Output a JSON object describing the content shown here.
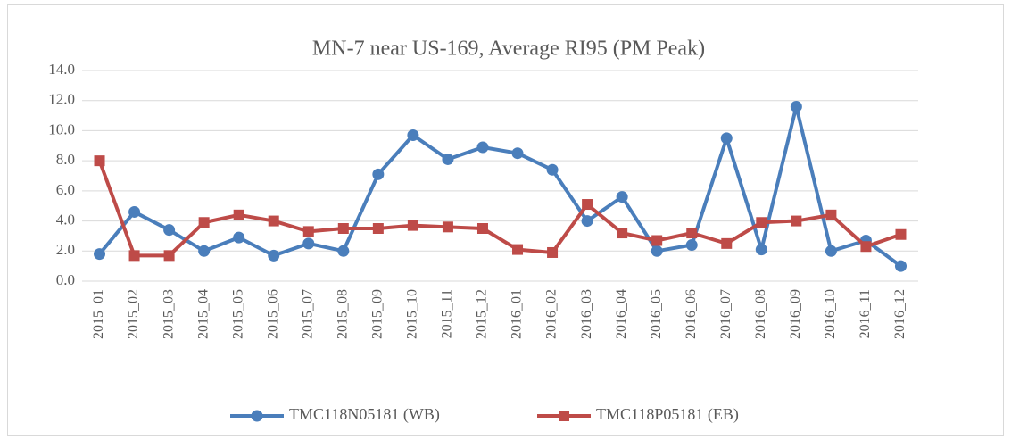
{
  "chart_data": {
    "type": "line",
    "title": "MN-7 near US-169, Average RI95 (PM Peak)",
    "categories": [
      "2015_01",
      "2015_02",
      "2015_03",
      "2015_04",
      "2015_05",
      "2015_06",
      "2015_07",
      "2015_08",
      "2015_09",
      "2015_10",
      "2015_11",
      "2015_12",
      "2016_01",
      "2016_02",
      "2016_03",
      "2016_04",
      "2016_05",
      "2016_06",
      "2016_07",
      "2016_08",
      "2016_09",
      "2016_10",
      "2016_11",
      "2016_12"
    ],
    "series": [
      {
        "name": "TMC118N05181 (WB)",
        "color": "#4a7ebb",
        "marker": "circle",
        "values": [
          1.8,
          4.6,
          3.4,
          2.0,
          2.9,
          1.7,
          2.5,
          2.0,
          7.1,
          9.7,
          8.1,
          8.9,
          8.5,
          7.4,
          4.0,
          5.6,
          2.0,
          2.4,
          9.5,
          2.1,
          11.6,
          2.0,
          2.7,
          1.0
        ]
      },
      {
        "name": "TMC118P05181 (EB)",
        "color": "#be4b48",
        "marker": "square",
        "values": [
          8.0,
          1.7,
          1.7,
          3.9,
          4.4,
          4.0,
          3.3,
          3.5,
          3.5,
          3.7,
          3.6,
          3.5,
          2.1,
          1.9,
          5.1,
          3.2,
          2.7,
          3.2,
          2.5,
          3.9,
          4.0,
          4.4,
          2.3,
          3.1
        ]
      }
    ],
    "ylim": [
      0,
      14
    ],
    "yticks": [
      {
        "value": 0,
        "label": "0.0"
      },
      {
        "value": 2,
        "label": "2.0"
      },
      {
        "value": 4,
        "label": "4.0"
      },
      {
        "value": 6,
        "label": "6.0"
      },
      {
        "value": 8,
        "label": "8.0"
      },
      {
        "value": 10,
        "label": "10.0"
      },
      {
        "value": 12,
        "label": "12.0"
      },
      {
        "value": 14,
        "label": "14.0"
      }
    ],
    "grid": true,
    "legend": "bottom"
  }
}
